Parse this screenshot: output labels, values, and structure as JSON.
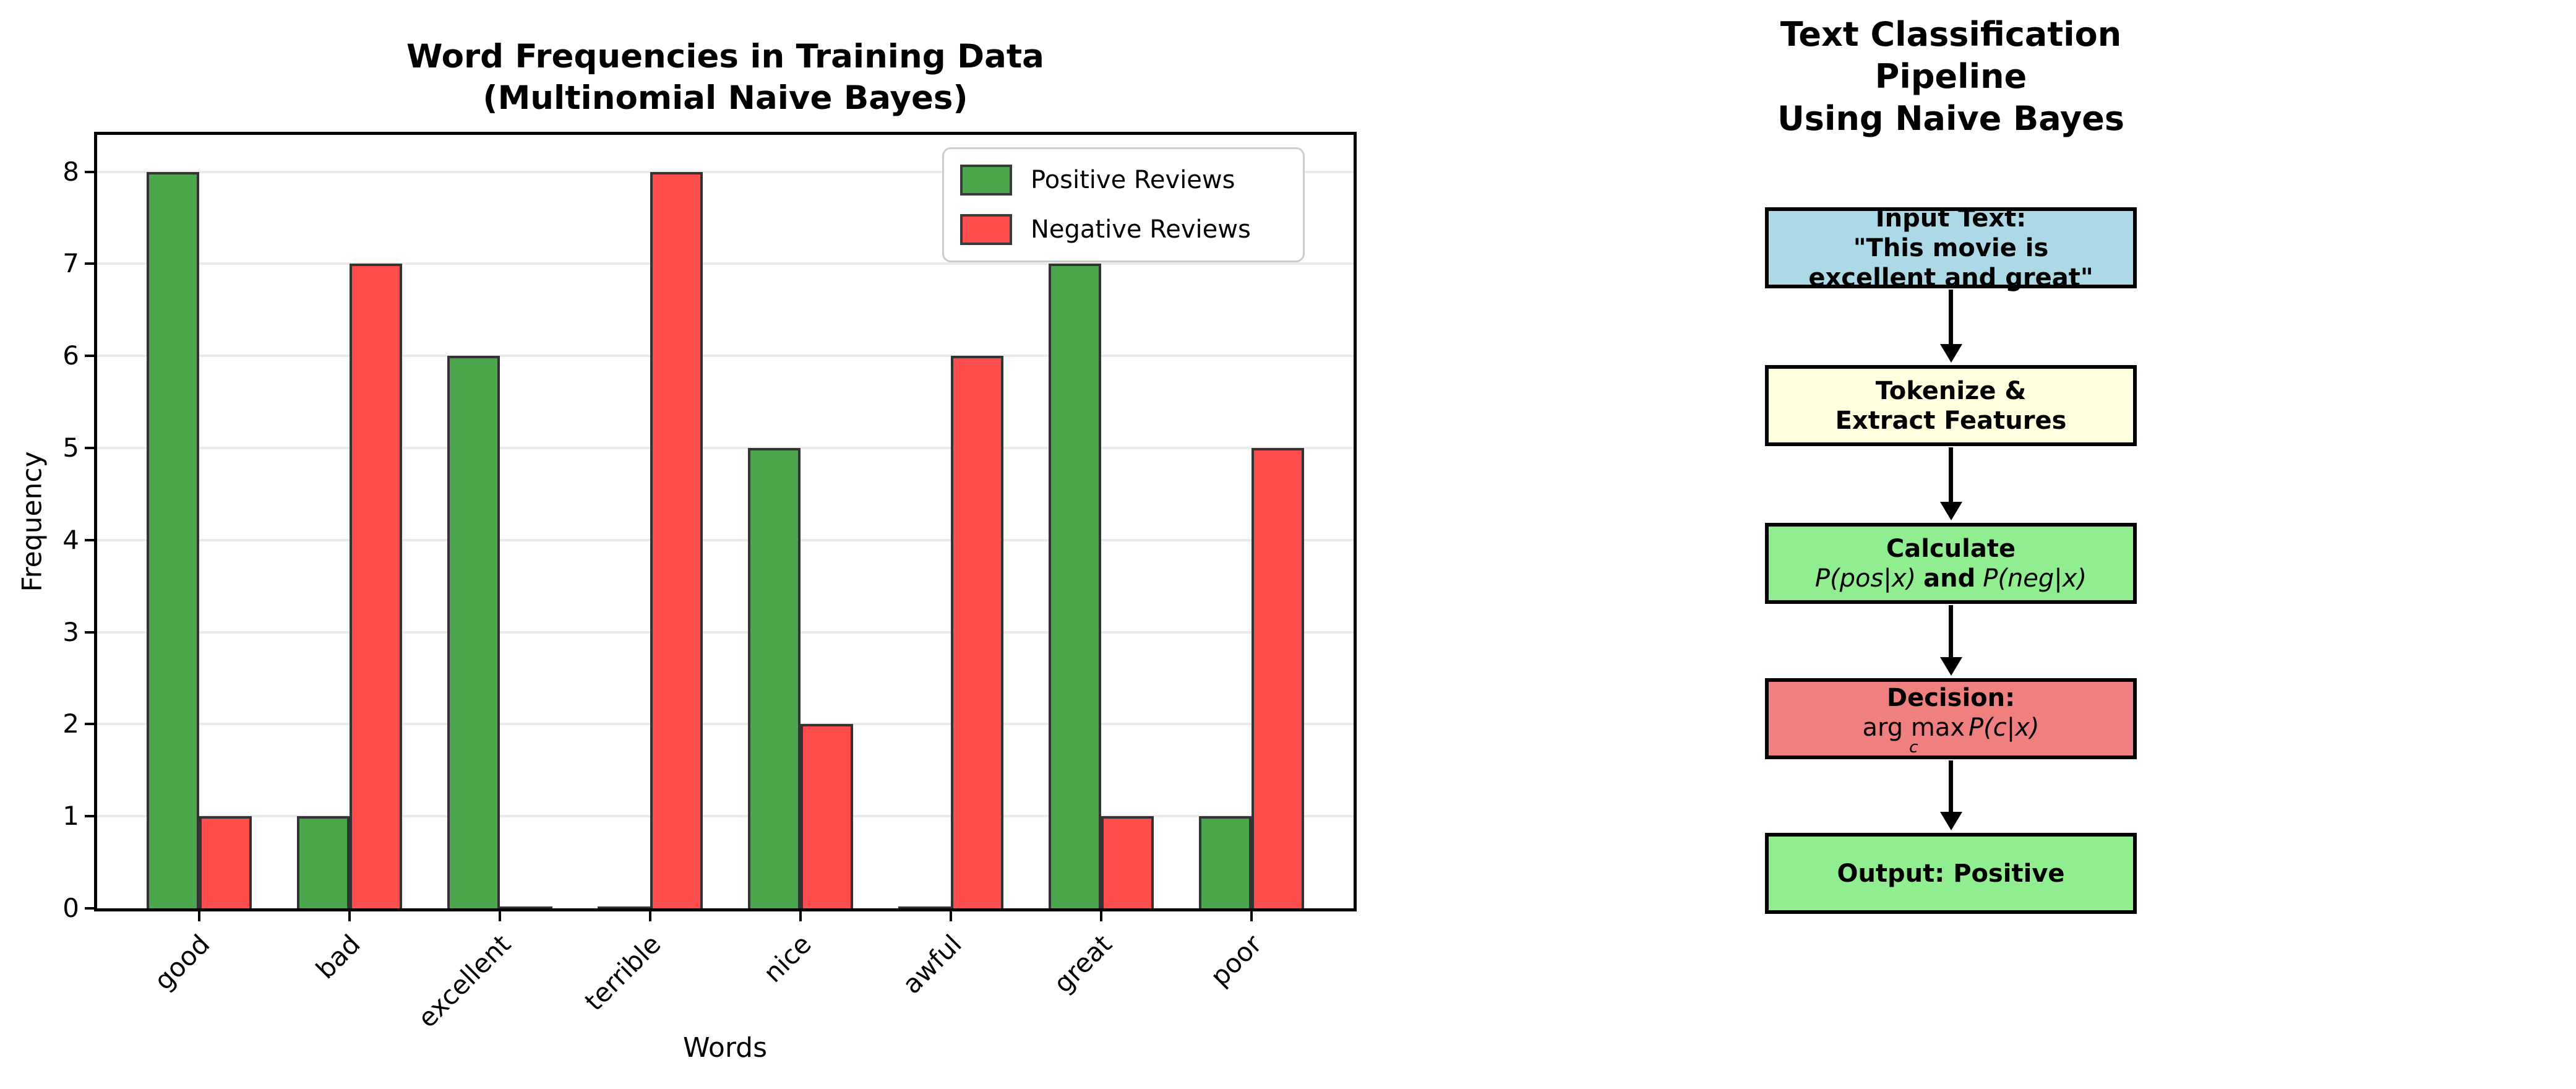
{
  "figure": {
    "background": "#ffffff"
  },
  "chart": {
    "title_lines": [
      "Word Frequencies in Training Data",
      "(Multinomial Naive Bayes)"
    ],
    "xlabel": "Words",
    "ylabel": "Frequency"
  },
  "chart_data": {
    "type": "bar",
    "title": "Word Frequencies in Training Data (Multinomial Naive Bayes)",
    "xlabel": "Words",
    "ylabel": "Frequency",
    "categories": [
      "good",
      "bad",
      "excellent",
      "terrible",
      "nice",
      "awful",
      "great",
      "poor"
    ],
    "series": [
      {
        "name": "Positive Reviews",
        "color": "#4CA64C",
        "edge_color": "#333333",
        "values": [
          8,
          1,
          6,
          0,
          5,
          0,
          7,
          1
        ]
      },
      {
        "name": "Negative Reviews",
        "color": "#FF4C4C",
        "edge_color": "#333333",
        "values": [
          1,
          7,
          0,
          8,
          2,
          6,
          1,
          5
        ]
      }
    ],
    "yticks": [
      0,
      1,
      2,
      3,
      4,
      5,
      6,
      7,
      8
    ],
    "ylim": [
      0,
      8.4
    ],
    "grid": true,
    "grid_color": "#ebebeb",
    "legend_position": "upper right"
  },
  "flowchart": {
    "title_lines": [
      "Text Classification Pipeline",
      "Using Naive Bayes"
    ],
    "arrow_color": "#000000",
    "boxes": {
      "input": {
        "fill": "#ADD8E6",
        "line1": "Input Text:",
        "line2": "\"This movie is",
        "line3": "excellent and great\""
      },
      "tokenize": {
        "fill": "#FFFFE0",
        "line1": "Tokenize &",
        "line2": "Extract Features"
      },
      "calculate": {
        "fill": "#90EE90",
        "line1": "Calculate",
        "math_left": "P(pos|x)",
        "conj": "and",
        "math_right": "P(neg|x)"
      },
      "decision": {
        "fill": "#F08080",
        "line1": "Decision:",
        "operator": "arg max",
        "operator_sub": "c",
        "math": "P(c|x)"
      },
      "output": {
        "fill": "#90EE90",
        "line1": "Output: Positive"
      }
    }
  }
}
